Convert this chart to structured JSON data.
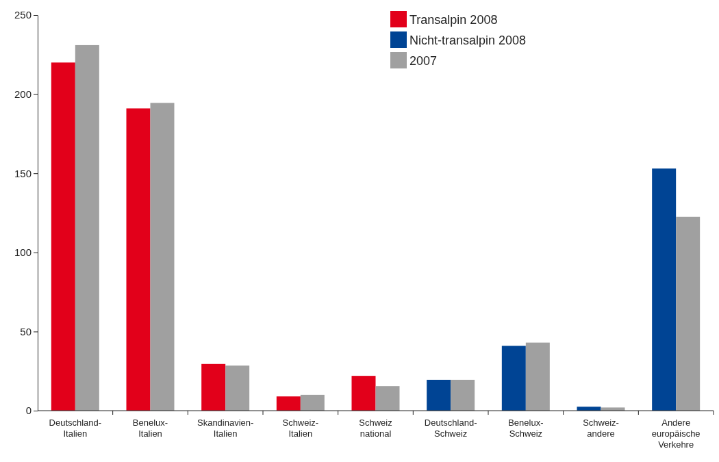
{
  "chart_data": {
    "type": "bar",
    "categories": [
      "Deutschland-Italien",
      "Benelux-Italien",
      "Skandinavien-Italien",
      "Schweiz-Italien",
      "Schweiz national",
      "Deutschland-Schweiz",
      "Benelux-Schweiz",
      "Schweiz-andere",
      "Andere europäische Verkehre"
    ],
    "series": [
      {
        "name": "Transalpin 2008",
        "color": "#e2001a",
        "values": [
          220,
          191,
          29.5,
          9,
          22,
          null,
          null,
          null,
          null
        ]
      },
      {
        "name": "Nicht-transalpin 2008",
        "color": "#004494",
        "values": [
          null,
          null,
          null,
          null,
          null,
          19.5,
          41,
          2.5,
          153
        ]
      },
      {
        "name": "2007",
        "color": "#a0a0a0",
        "values": [
          231,
          194.5,
          28.5,
          10,
          15.5,
          19.5,
          43,
          2,
          122.5
        ]
      }
    ],
    "ylim": [
      0,
      250
    ],
    "yticks": [
      0,
      50,
      100,
      150,
      200,
      250
    ],
    "grid": false,
    "legend": "top"
  }
}
